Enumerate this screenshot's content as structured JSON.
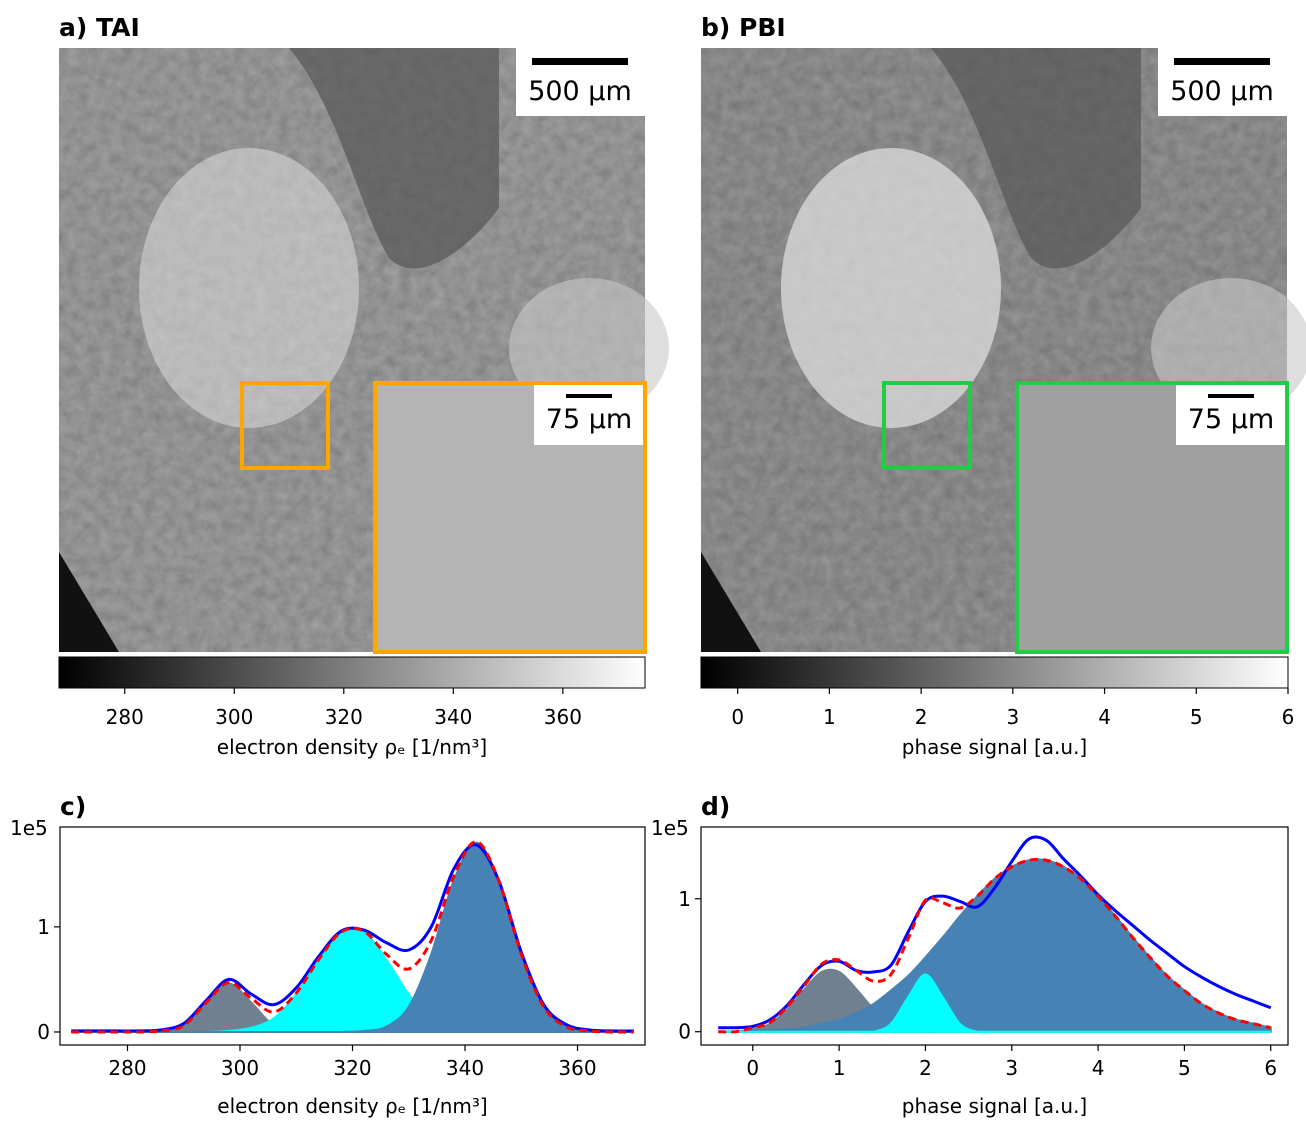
{
  "panels": [
    {
      "label": "a) TAI",
      "scale_bar": "500 µm",
      "inset_scale_bar": "75 µm",
      "inset_color": "#ffa500",
      "colorbar": {
        "label": "electron density ρₑ [1/nm³]",
        "lim": [
          268,
          375
        ],
        "ticks": [
          280,
          300,
          320,
          340,
          360
        ]
      }
    },
    {
      "label": "b) PBI",
      "scale_bar": "500 µm",
      "inset_scale_bar": "75 µm",
      "inset_color": "#22cc44",
      "colorbar": {
        "label": "phase signal [a.u.]",
        "lim": [
          -0.4,
          6
        ],
        "ticks": [
          0,
          1,
          2,
          3,
          4,
          5,
          6
        ]
      }
    }
  ],
  "chart_data": [
    {
      "type": "line",
      "title": "c)",
      "xlabel": "electron density ρₑ [1/nm³]",
      "offset_text": "1e5",
      "x": [
        270,
        274,
        278,
        282,
        286,
        290,
        294,
        298,
        302,
        306,
        310,
        314,
        318,
        322,
        326,
        330,
        334,
        338,
        342,
        346,
        350,
        354,
        358,
        362,
        366,
        370
      ],
      "xlim": [
        268,
        372
      ],
      "xticks": [
        280,
        300,
        320,
        340,
        360
      ],
      "ylim": [
        -0.124,
        1.95
      ],
      "yticks": [
        0,
        1
      ],
      "series": [
        {
          "color": "#708090",
          "fill": true,
          "values": [
            0,
            0,
            0,
            0,
            0.01,
            0.06,
            0.28,
            0.46,
            0.28,
            0.06,
            0.01,
            0,
            0,
            0,
            0,
            0,
            0,
            0,
            0,
            0,
            0,
            0,
            0,
            0,
            0,
            0
          ]
        },
        {
          "color": "#00ffff",
          "fill": true,
          "values": [
            0,
            0,
            0,
            0,
            0,
            0,
            0,
            0.01,
            0.04,
            0.13,
            0.36,
            0.69,
            0.95,
            0.95,
            0.69,
            0.36,
            0.13,
            0.04,
            0.01,
            0,
            0,
            0,
            0,
            0,
            0,
            0
          ]
        },
        {
          "color": "#4682b4",
          "fill": true,
          "values": [
            0,
            0,
            0,
            0,
            0,
            0,
            0,
            0,
            0,
            0,
            0,
            0,
            0,
            0.01,
            0.05,
            0.24,
            0.74,
            1.44,
            1.8,
            1.44,
            0.74,
            0.24,
            0.05,
            0.01,
            0,
            0
          ]
        },
        {
          "color": "#0000ff",
          "values": [
            0.01,
            0.01,
            0.01,
            0.01,
            0.02,
            0.08,
            0.3,
            0.5,
            0.36,
            0.26,
            0.42,
            0.72,
            0.96,
            0.97,
            0.85,
            0.78,
            1.0,
            1.55,
            1.78,
            1.44,
            0.76,
            0.26,
            0.07,
            0.02,
            0.01,
            0.01
          ]
        },
        {
          "color": "#ff0000",
          "dash": true,
          "values": [
            0,
            0,
            0,
            0,
            0.01,
            0.06,
            0.28,
            0.47,
            0.32,
            0.19,
            0.37,
            0.69,
            0.95,
            0.96,
            0.74,
            0.6,
            0.87,
            1.48,
            1.81,
            1.44,
            0.74,
            0.24,
            0.05,
            0.01,
            0,
            0
          ]
        }
      ]
    },
    {
      "type": "line",
      "title": "d)",
      "xlabel": "phase signal [a.u.]",
      "offset_text": "1e5",
      "x": [
        -0.4,
        -0.2,
        0,
        0.2,
        0.4,
        0.6,
        0.8,
        1.0,
        1.2,
        1.4,
        1.6,
        1.8,
        2.0,
        2.2,
        2.4,
        2.6,
        2.8,
        3.0,
        3.2,
        3.4,
        3.6,
        3.8,
        4.0,
        4.2,
        4.4,
        4.6,
        4.8,
        5.0,
        5.2,
        5.4,
        5.6,
        5.8,
        6.0
      ],
      "xlim": [
        -0.6,
        6.2
      ],
      "xticks": [
        0,
        1,
        2,
        3,
        4,
        5,
        6
      ],
      "ylim": [
        -0.1,
        1.54
      ],
      "yticks": [
        0,
        1
      ],
      "series": [
        {
          "color": "#708090",
          "fill": true,
          "values": [
            0,
            0,
            0.02,
            0.06,
            0.17,
            0.32,
            0.45,
            0.45,
            0.32,
            0.17,
            0.06,
            0.02,
            0,
            0,
            0,
            0,
            0,
            0,
            0,
            0,
            0,
            0,
            0,
            0,
            0,
            0,
            0,
            0,
            0,
            0,
            0,
            0,
            0
          ]
        },
        {
          "color": "#4682b4",
          "fill": true,
          "values": [
            0,
            0,
            0.01,
            0.01,
            0.02,
            0.03,
            0.06,
            0.09,
            0.14,
            0.21,
            0.31,
            0.42,
            0.56,
            0.71,
            0.87,
            1.02,
            1.15,
            1.24,
            1.29,
            1.29,
            1.24,
            1.15,
            1.02,
            0.87,
            0.71,
            0.56,
            0.42,
            0.31,
            0.21,
            0.14,
            0.09,
            0.06,
            0.03
          ]
        },
        {
          "color": "#00ffff",
          "fill": true,
          "values": [
            0,
            0,
            0,
            0,
            0,
            0,
            0,
            0,
            0,
            0,
            0.06,
            0.26,
            0.43,
            0.26,
            0.06,
            0,
            0,
            0,
            0,
            0,
            0,
            0,
            0,
            0,
            0,
            0,
            0,
            0,
            0,
            0,
            0,
            0,
            0
          ]
        },
        {
          "color": "#0000ff",
          "values": [
            0.03,
            0.03,
            0.04,
            0.09,
            0.2,
            0.36,
            0.5,
            0.53,
            0.46,
            0.45,
            0.5,
            0.75,
            0.98,
            1.02,
            0.98,
            0.94,
            1.08,
            1.28,
            1.45,
            1.44,
            1.3,
            1.17,
            1.03,
            0.91,
            0.8,
            0.69,
            0.59,
            0.49,
            0.41,
            0.34,
            0.28,
            0.23,
            0.18
          ]
        },
        {
          "color": "#ff0000",
          "dash": true,
          "values": [
            0,
            0,
            0.03,
            0.07,
            0.19,
            0.35,
            0.51,
            0.54,
            0.46,
            0.38,
            0.43,
            0.7,
            0.99,
            0.97,
            0.93,
            1.02,
            1.15,
            1.24,
            1.29,
            1.29,
            1.24,
            1.15,
            1.02,
            0.87,
            0.71,
            0.56,
            0.42,
            0.31,
            0.21,
            0.14,
            0.09,
            0.06,
            0.03
          ]
        }
      ]
    }
  ]
}
